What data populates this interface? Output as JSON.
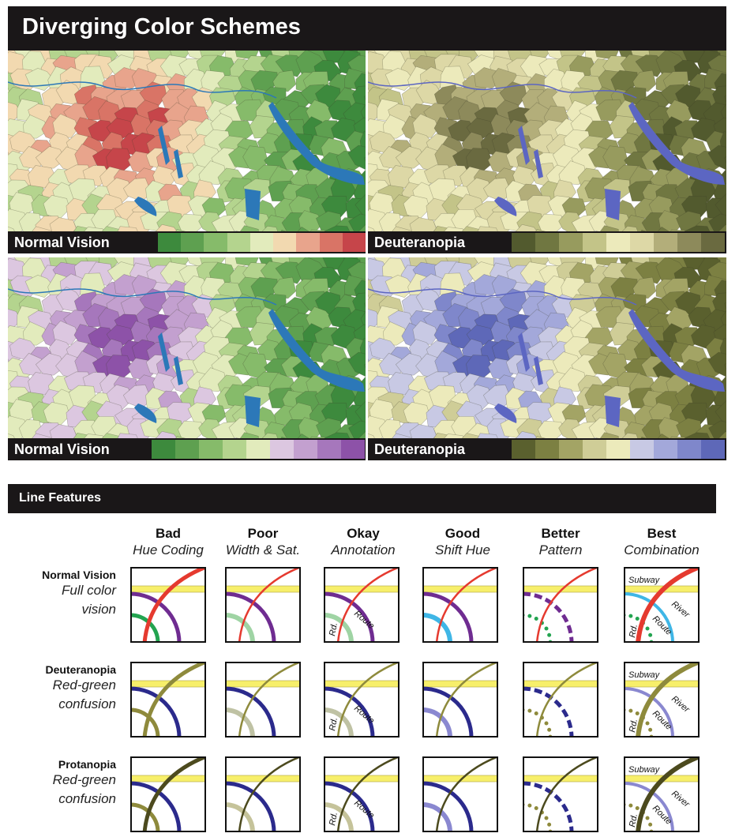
{
  "title": "Diverging Color Schemes",
  "maps": [
    {
      "label": "Normal Vision",
      "scheme": "green-red",
      "swatches": [
        "#3d8a3d",
        "#5ea050",
        "#86bb6a",
        "#b4d48e",
        "#e2ebbc",
        "#f2d9b0",
        "#e8a48c",
        "#d97466",
        "#c6454a"
      ]
    },
    {
      "label": "Deuteranopia",
      "scheme": "olive-cream",
      "swatches": [
        "#525a2e",
        "#707741",
        "#979b5e",
        "#c3c488",
        "#eceabb",
        "#ddd8a6",
        "#b3ae7a",
        "#8d8a5b",
        "#6a6a40"
      ]
    },
    {
      "label": "Normal Vision",
      "scheme": "green-purple",
      "swatches": [
        "#3d8a3d",
        "#5ea050",
        "#86bb6a",
        "#b4d48e",
        "#e2ebbc",
        "#dcc7e0",
        "#c3a0cf",
        "#a677bc",
        "#8d52a8"
      ]
    },
    {
      "label": "Deuteranopia",
      "scheme": "olive-blue",
      "swatches": [
        "#5a602e",
        "#7c8042",
        "#a3a465",
        "#cfcd97",
        "#eceabb",
        "#c8c9e4",
        "#a3a8da",
        "#7f87cb",
        "#5e68b8"
      ]
    }
  ],
  "section_title": "Line Features",
  "columns": [
    {
      "title": "Bad",
      "subtitle": "Hue Coding"
    },
    {
      "title": "Poor",
      "subtitle": "Width & Sat."
    },
    {
      "title": "Okay",
      "subtitle": "Annotation"
    },
    {
      "title": "Good",
      "subtitle": "Shift Hue"
    },
    {
      "title": "Better",
      "subtitle": "Pattern"
    },
    {
      "title": "Best",
      "subtitle": "Combination"
    }
  ],
  "rows": [
    {
      "title": "Normal Vision",
      "line1": "Full color",
      "line2": "vision",
      "colors": {
        "red": "#e53a2f",
        "purple": "#6f2c91",
        "green": "#23a450",
        "green_light": "#9fd4a4",
        "blue_light": "#3fb6e6",
        "yellow": "#f7ef6a"
      }
    },
    {
      "title": "Deuteranopia",
      "line1": "Red-green",
      "line2": "confusion",
      "colors": {
        "red": "#8e8a3c",
        "purple": "#2b2a8c",
        "green": "#8e8a3c",
        "green_light": "#bfc2a4",
        "blue_light": "#8a88d0",
        "yellow": "#f7ef6a"
      }
    },
    {
      "title": "Protanopia",
      "line1": "Red-green",
      "line2": "confusion",
      "colors": {
        "red": "#4c4a1e",
        "purple": "#2b2a8c",
        "green": "#8e8a3c",
        "green_light": "#c5c39a",
        "blue_light": "#8a88d0",
        "yellow": "#f7ef6a"
      }
    }
  ],
  "labels": {
    "subway": "Subway",
    "river": "River",
    "route": "Route",
    "rd": "Rd."
  }
}
